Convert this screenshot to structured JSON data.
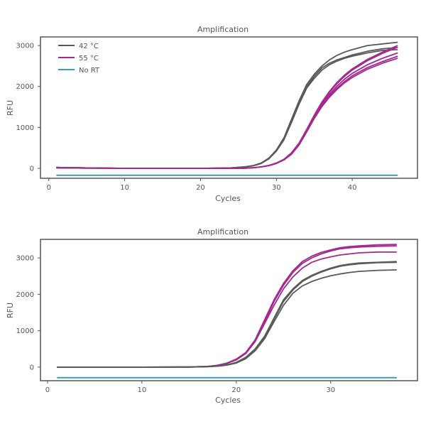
{
  "colors": {
    "42C": "#595959",
    "55C": "#a3298f",
    "NoRT": "#3b9bb7"
  },
  "chart_data": [
    {
      "type": "line",
      "title": "Amplification",
      "xlabel": "Cycles",
      "ylabel": "RFU",
      "xlim": [
        -1.1,
        48.6
      ],
      "ylim": [
        -243,
        3210
      ],
      "xticks": [
        0,
        10,
        20,
        30,
        40
      ],
      "yticks": [
        0,
        1000,
        2000,
        3000
      ],
      "grid": false,
      "legend": {
        "placement": "top-left",
        "entries": [
          {
            "label": "42 °C",
            "color_key": "42C"
          },
          {
            "label": "55 °C",
            "color_key": "55C"
          },
          {
            "label": "No RT",
            "color_key": "NoRT"
          }
        ]
      },
      "x": [
        1,
        5,
        10,
        15,
        20,
        24,
        26,
        27,
        28,
        29,
        30,
        31,
        32,
        33,
        34,
        35,
        36,
        37,
        38,
        39,
        40,
        42,
        44,
        46
      ],
      "series": [
        {
          "group": "42C",
          "values": [
            10,
            5,
            0,
            0,
            0,
            10,
            40,
            70,
            130,
            250,
            450,
            750,
            1200,
            1650,
            2050,
            2300,
            2500,
            2650,
            2760,
            2840,
            2900,
            3000,
            3040,
            3080
          ]
        },
        {
          "group": "42C",
          "values": [
            10,
            5,
            0,
            0,
            0,
            10,
            35,
            65,
            120,
            240,
            430,
            720,
            1150,
            1600,
            2000,
            2250,
            2450,
            2570,
            2650,
            2710,
            2770,
            2860,
            2920,
            2950
          ]
        },
        {
          "group": "42C",
          "values": [
            10,
            5,
            0,
            0,
            0,
            10,
            35,
            65,
            120,
            230,
            420,
            700,
            1120,
            1570,
            1960,
            2200,
            2400,
            2530,
            2620,
            2690,
            2740,
            2820,
            2880,
            2900
          ]
        },
        {
          "group": "55C",
          "values": [
            20,
            10,
            0,
            0,
            0,
            0,
            5,
            15,
            35,
            70,
            130,
            220,
            380,
            620,
            950,
            1300,
            1620,
            1880,
            2100,
            2280,
            2430,
            2660,
            2840,
            3000
          ]
        },
        {
          "group": "55C",
          "values": [
            20,
            10,
            0,
            0,
            0,
            0,
            5,
            15,
            35,
            70,
            130,
            220,
            370,
            610,
            940,
            1290,
            1600,
            1860,
            2070,
            2250,
            2400,
            2630,
            2810,
            2960
          ]
        },
        {
          "group": "55C",
          "values": [
            20,
            10,
            0,
            0,
            0,
            0,
            5,
            15,
            35,
            70,
            125,
            215,
            360,
            590,
            920,
            1260,
            1560,
            1810,
            2010,
            2180,
            2320,
            2530,
            2690,
            2820
          ]
        },
        {
          "group": "55C",
          "values": [
            20,
            10,
            0,
            0,
            0,
            0,
            5,
            15,
            35,
            65,
            120,
            210,
            350,
            580,
            900,
            1240,
            1530,
            1770,
            1960,
            2120,
            2260,
            2460,
            2610,
            2740
          ]
        },
        {
          "group": "55C",
          "values": [
            20,
            10,
            0,
            0,
            0,
            0,
            5,
            15,
            35,
            65,
            120,
            205,
            345,
            570,
            890,
            1220,
            1510,
            1740,
            1930,
            2090,
            2220,
            2420,
            2570,
            2690
          ]
        },
        {
          "group": "NoRT",
          "values": [
            -170,
            -170,
            -170,
            -170,
            -170,
            -170,
            -170,
            -170,
            -170,
            -170,
            -170,
            -170,
            -170,
            -170,
            -170,
            -170,
            -170,
            -170,
            -170,
            -170,
            -170,
            -170,
            -170,
            -170
          ]
        }
      ]
    },
    {
      "type": "line",
      "title": "Amplification",
      "xlabel": "Cycles",
      "ylabel": "RFU",
      "xlim": [
        -0.75,
        39.2
      ],
      "ylim": [
        -373,
        3510
      ],
      "xticks": [
        0,
        10,
        20,
        30
      ],
      "yticks": [
        0,
        1000,
        2000,
        3000
      ],
      "grid": false,
      "x": [
        1,
        5,
        10,
        15,
        17,
        18,
        19,
        20,
        21,
        22,
        23,
        24,
        25,
        26,
        27,
        28,
        29,
        30,
        31,
        32,
        33,
        35,
        37
      ],
      "series": [
        {
          "group": "55C",
          "values": [
            0,
            0,
            0,
            5,
            20,
            50,
            110,
            220,
            400,
            750,
            1300,
            1850,
            2300,
            2650,
            2900,
            3050,
            3150,
            3220,
            3280,
            3310,
            3330,
            3360,
            3370
          ]
        },
        {
          "group": "55C",
          "values": [
            0,
            0,
            0,
            5,
            20,
            45,
            100,
            200,
            380,
            720,
            1250,
            1800,
            2250,
            2600,
            2850,
            3000,
            3110,
            3190,
            3250,
            3280,
            3300,
            3320,
            3330
          ]
        },
        {
          "group": "55C",
          "values": [
            0,
            0,
            0,
            5,
            20,
            45,
            100,
            200,
            370,
            700,
            1200,
            1700,
            2150,
            2480,
            2720,
            2880,
            2970,
            3030,
            3080,
            3110,
            3140,
            3160,
            3160
          ]
        },
        {
          "group": "42C",
          "values": [
            0,
            0,
            0,
            0,
            15,
            30,
            60,
            130,
            270,
            500,
            850,
            1350,
            1850,
            2150,
            2380,
            2520,
            2630,
            2720,
            2790,
            2830,
            2860,
            2880,
            2900
          ]
        },
        {
          "group": "42C",
          "values": [
            0,
            0,
            0,
            0,
            15,
            30,
            60,
            125,
            260,
            490,
            830,
            1320,
            1800,
            2120,
            2350,
            2500,
            2610,
            2700,
            2770,
            2810,
            2840,
            2870,
            2880
          ]
        },
        {
          "group": "42C",
          "values": [
            0,
            0,
            0,
            0,
            10,
            25,
            55,
            110,
            230,
            450,
            780,
            1250,
            1700,
            2030,
            2230,
            2350,
            2440,
            2510,
            2560,
            2600,
            2630,
            2660,
            2670
          ]
        },
        {
          "group": "NoRT",
          "values": [
            -290,
            -290,
            -290,
            -290,
            -290,
            -290,
            -290,
            -290,
            -290,
            -290,
            -290,
            -290,
            -290,
            -290,
            -290,
            -290,
            -290,
            -290,
            -290,
            -290,
            -290,
            -290,
            -290
          ]
        }
      ]
    }
  ]
}
